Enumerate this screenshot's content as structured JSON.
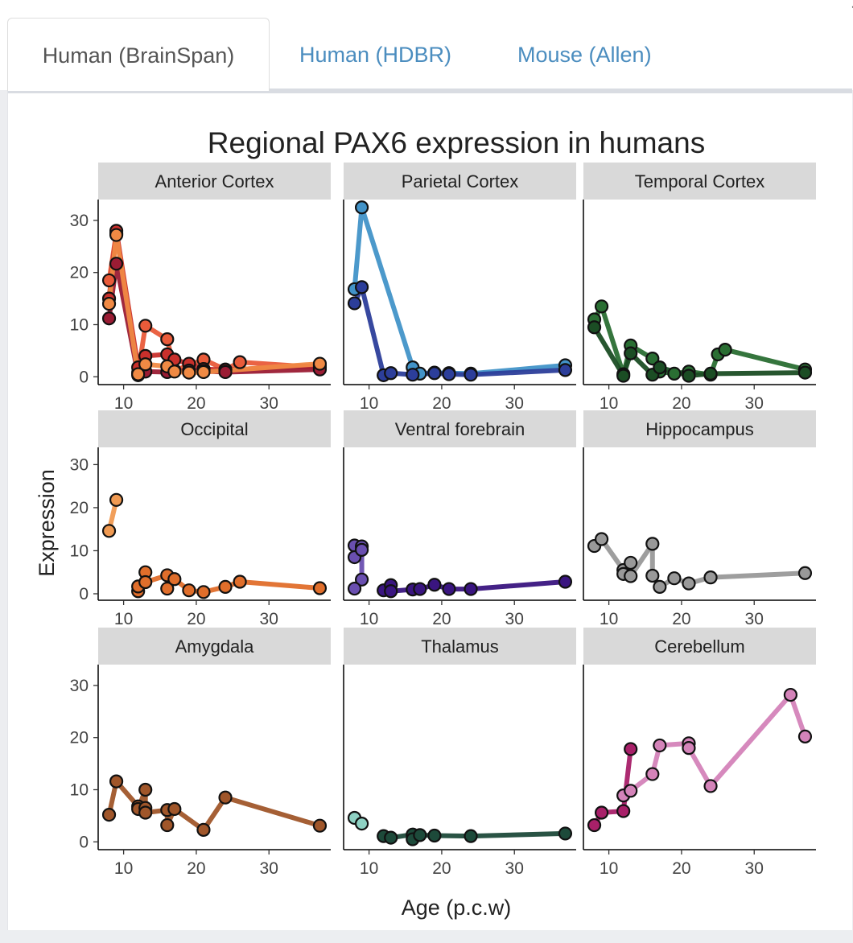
{
  "tabs": [
    {
      "label": "Human (BrainSpan)",
      "active": true
    },
    {
      "label": "Human (HDBR)",
      "active": false
    },
    {
      "label": "Mouse (Allen)",
      "active": false
    }
  ],
  "colors": {
    "tab_link": "#4b8dbf",
    "strip_bg": "#d9d9d9",
    "panel_border": "#d9dce2"
  },
  "chart_data": {
    "type": "line",
    "title": "Regional PAX6 expression in humans",
    "xlabel": "Age (p.c.w)",
    "ylabel": "Expression",
    "xlim": [
      6.5,
      38.5
    ],
    "ylim": [
      -1.5,
      34
    ],
    "x_ticks": [
      10,
      20,
      30
    ],
    "y_ticks": [
      0,
      10,
      20,
      30
    ],
    "grid": false,
    "facets": [
      {
        "label": "Anterior Cortex",
        "series": [
          {
            "color": "#e95b3a",
            "points": [
              [
                8,
                18.5
              ],
              [
                9,
                27.5
              ],
              [
                12,
                0.8
              ],
              [
                13,
                9.8
              ],
              [
                16,
                7.2
              ],
              [
                17,
                1.2
              ],
              [
                21,
                3.3
              ],
              [
                24,
                1.4
              ],
              [
                26,
                2.8
              ],
              [
                37,
                1.8
              ]
            ]
          },
          {
            "color": "#c9302c",
            "points": [
              [
                8,
                15
              ],
              [
                9,
                28
              ],
              [
                12,
                1.8
              ],
              [
                13,
                4
              ],
              [
                16,
                4.3
              ],
              [
                17,
                3.3
              ],
              [
                19,
                2.5
              ],
              [
                21,
                1.5
              ],
              [
                24,
                1.3
              ],
              [
                37,
                2.2
              ]
            ]
          },
          {
            "color": "#9b1c34",
            "points": [
              [
                8,
                11.2
              ],
              [
                9,
                21.7
              ],
              [
                12,
                0.3
              ],
              [
                13,
                1
              ],
              [
                16,
                0.9
              ],
              [
                19,
                1.2
              ],
              [
                21,
                1.1
              ],
              [
                24,
                0.9
              ],
              [
                37,
                1.4
              ]
            ]
          },
          {
            "color": "#f08a44",
            "points": [
              [
                8,
                14
              ],
              [
                9,
                27.2
              ],
              [
                12,
                0.5
              ],
              [
                13,
                2.4
              ],
              [
                16,
                2
              ],
              [
                17,
                1
              ],
              [
                19,
                0.8
              ],
              [
                21,
                0.9
              ],
              [
                37,
                2.5
              ]
            ]
          }
        ]
      },
      {
        "label": "Parietal Cortex",
        "series": [
          {
            "color": "#4293c8",
            "points": [
              [
                8,
                16.8
              ],
              [
                9,
                32.5
              ],
              [
                16,
                1.8
              ],
              [
                17,
                0.6
              ],
              [
                19,
                0.8
              ],
              [
                21,
                0.7
              ],
              [
                24,
                0.6
              ],
              [
                37,
                2.2
              ]
            ]
          },
          {
            "color": "#2c3e9a",
            "points": [
              [
                8,
                14.1
              ],
              [
                9,
                17.2
              ],
              [
                12,
                0.3
              ],
              [
                13,
                0.7
              ],
              [
                16,
                0.4
              ],
              [
                19,
                0.7
              ],
              [
                21,
                0.5
              ],
              [
                24,
                0.4
              ],
              [
                37,
                1.3
              ]
            ]
          }
        ]
      },
      {
        "label": "Temporal Cortex",
        "series": [
          {
            "color": "#2a6e33",
            "points": [
              [
                8,
                11
              ],
              [
                9,
                13.5
              ],
              [
                12,
                0.5
              ],
              [
                13,
                6
              ],
              [
                16,
                3.5
              ],
              [
                17,
                1
              ],
              [
                19,
                0.6
              ],
              [
                21,
                1
              ],
              [
                24,
                0.4
              ],
              [
                25,
                4.3
              ],
              [
                26,
                5.2
              ],
              [
                37,
                1.4
              ]
            ]
          },
          {
            "color": "#1b4d24",
            "points": [
              [
                8,
                9.5
              ],
              [
                12,
                0.2
              ],
              [
                13,
                4.5
              ],
              [
                16,
                0.4
              ],
              [
                17,
                1.8
              ],
              [
                21,
                0.2
              ],
              [
                24,
                0.6
              ],
              [
                37,
                0.8
              ]
            ]
          }
        ]
      },
      {
        "label": "Occipital",
        "series": [
          {
            "color": "#f09a52",
            "points": [
              [
                8,
                14.6
              ],
              [
                9,
                21.8
              ]
            ]
          },
          {
            "color": "#e06e2b",
            "points": [
              [
                12,
                0.6
              ],
              [
                12,
                1.7
              ],
              [
                13,
                5
              ],
              [
                13,
                2.7
              ],
              [
                16,
                4.3
              ],
              [
                16,
                1.2
              ],
              [
                17,
                3.4
              ],
              [
                19,
                0.8
              ],
              [
                21,
                0.4
              ],
              [
                24,
                1.6
              ],
              [
                26,
                2.8
              ],
              [
                37,
                1.3
              ]
            ]
          }
        ]
      },
      {
        "label": "Ventral forebrain",
        "series": [
          {
            "color": "#6a4fb0",
            "points": [
              [
                8,
                11.2
              ],
              [
                8,
                8.5
              ],
              [
                9,
                11
              ],
              [
                9,
                10.2
              ],
              [
                9,
                3.3
              ],
              [
                8,
                1.2
              ]
            ]
          },
          {
            "color": "#3a1580",
            "points": [
              [
                12,
                0.8
              ],
              [
                13,
                2
              ],
              [
                13,
                0.6
              ],
              [
                16,
                1
              ],
              [
                17,
                1.1
              ],
              [
                19,
                2.1
              ],
              [
                21,
                1.1
              ],
              [
                24,
                1.1
              ],
              [
                37,
                2.8
              ]
            ]
          }
        ]
      },
      {
        "label": "Hippocampus",
        "series": [
          {
            "color": "#999999",
            "points": [
              [
                8,
                11.1
              ],
              [
                9,
                12.7
              ],
              [
                12,
                5.5
              ],
              [
                12,
                4.6
              ],
              [
                13,
                7.2
              ],
              [
                13,
                4.1
              ],
              [
                16,
                11.6
              ],
              [
                16,
                4.2
              ],
              [
                17,
                1.6
              ],
              [
                19,
                3.6
              ],
              [
                21,
                2.4
              ],
              [
                24,
                3.8
              ],
              [
                37,
                4.8
              ]
            ]
          }
        ]
      },
      {
        "label": "Amygdala",
        "series": [
          {
            "color": "#a0562a",
            "points": [
              [
                8,
                5.2
              ],
              [
                9,
                11.6
              ],
              [
                12,
                6.8
              ],
              [
                12,
                6.3
              ],
              [
                13,
                10
              ],
              [
                13,
                6.5
              ],
              [
                13,
                5.6
              ],
              [
                16,
                6.1
              ],
              [
                16,
                3.2
              ],
              [
                17,
                6.3
              ],
              [
                21,
                2.3
              ],
              [
                24,
                8.5
              ],
              [
                37,
                3.1
              ]
            ]
          }
        ]
      },
      {
        "label": "Thalamus",
        "series": [
          {
            "color": "#8ed1c3",
            "points": [
              [
                8,
                4.6
              ],
              [
                9,
                3.5
              ]
            ]
          },
          {
            "color": "#1d4a3a",
            "points": [
              [
                12,
                1.1
              ],
              [
                13,
                0.8
              ],
              [
                16,
                1.4
              ],
              [
                16,
                0.5
              ],
              [
                17,
                1.3
              ],
              [
                19,
                1.2
              ],
              [
                24,
                1.1
              ],
              [
                37,
                1.6
              ]
            ]
          }
        ]
      },
      {
        "label": "Cerebellum",
        "series": [
          {
            "color": "#d483b9",
            "points": [
              [
                12,
                8.9
              ],
              [
                13,
                9.8
              ],
              [
                16,
                13
              ],
              [
                17,
                18.5
              ],
              [
                21,
                18.9
              ],
              [
                21,
                18
              ],
              [
                24,
                10.7
              ],
              [
                35,
                28.2
              ],
              [
                37,
                20.2
              ]
            ]
          },
          {
            "color": "#a82069",
            "points": [
              [
                8,
                3.2
              ],
              [
                9,
                5.6
              ],
              [
                12,
                5.9
              ],
              [
                13,
                17.8
              ]
            ]
          }
        ]
      }
    ]
  }
}
